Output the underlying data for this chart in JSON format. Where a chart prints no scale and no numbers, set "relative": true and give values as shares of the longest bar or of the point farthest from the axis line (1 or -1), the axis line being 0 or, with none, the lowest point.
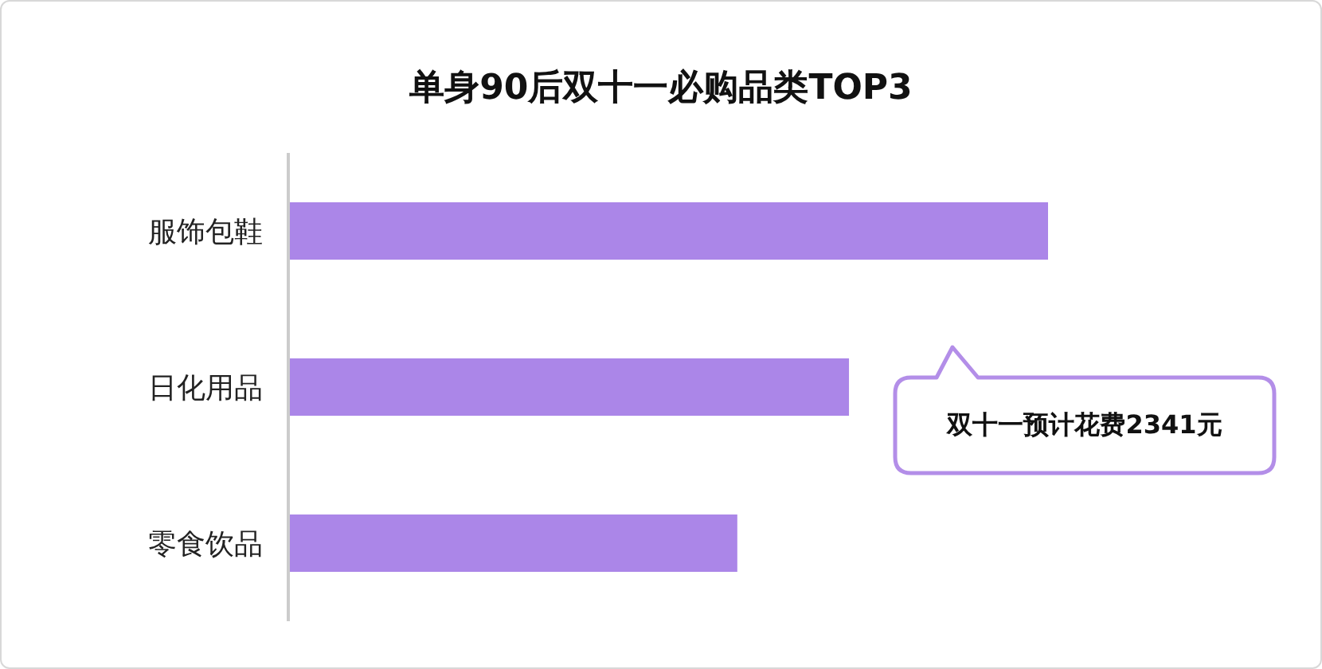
{
  "chart_data": {
    "type": "bar",
    "orientation": "horizontal",
    "relative": true,
    "title": "单身90后双十一必购品类TOP3",
    "categories": [
      "服饰包鞋",
      "日化用品",
      "零食饮品"
    ],
    "values": [
      1,
      0.738,
      0.591
    ],
    "color": "#ab86e8",
    "annotations": [
      "双十一预计花费2341元"
    ]
  }
}
